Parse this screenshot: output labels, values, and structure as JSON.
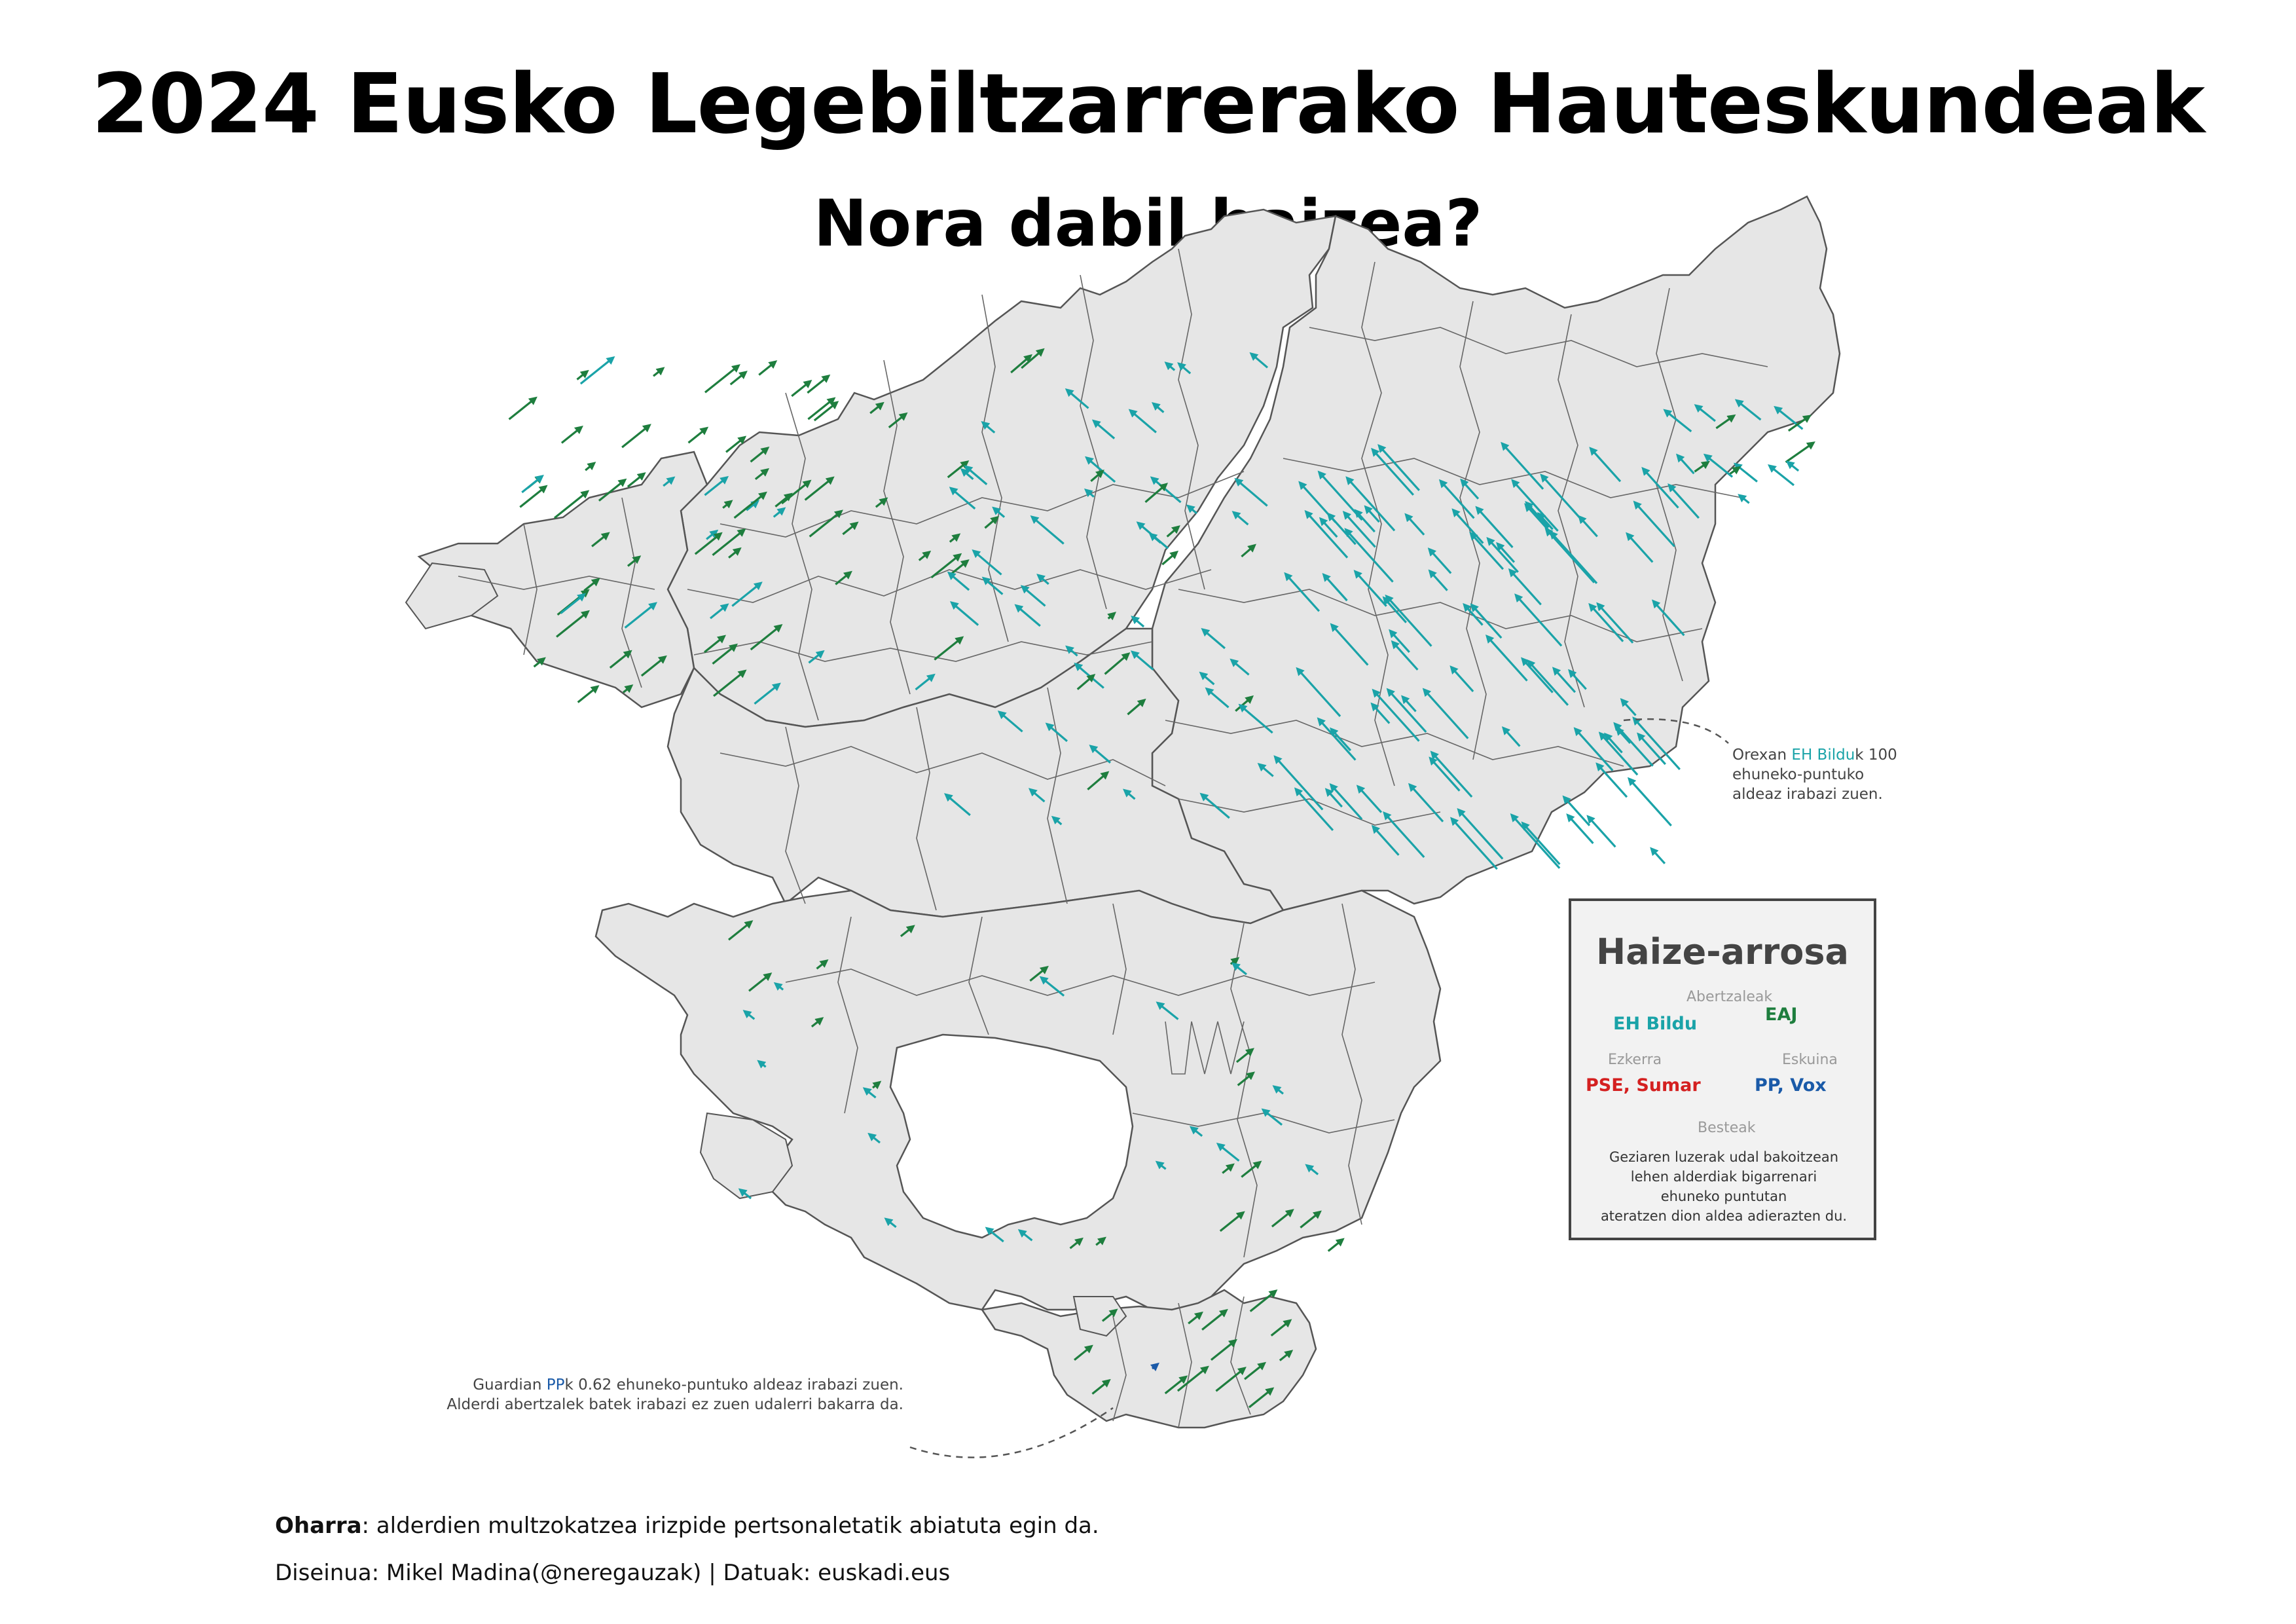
{
  "title": "2024 Eusko Legebiltzarrerako Hauteskundeak",
  "subtitle": "Nora dabil haizea?",
  "colors": {
    "EH Bildu": "#1aa3a8",
    "EAJ": "#1e7e3e",
    "PSE, Sumar": "#d42020",
    "PP, Vox": "#1a5aa8",
    "land": "#e6e6e6",
    "border": "#555555"
  },
  "annotations": {
    "orexa": {
      "pre": "Orexan ",
      "party": "EH Bildu",
      "post": "k 100",
      "line2": "ehuneko-puntuko",
      "line3": "aldeaz irabazi zuen."
    },
    "guardia": {
      "pre": "Guardian ",
      "party": "PP",
      "post": "k 0.62 ehuneko-puntuko aldeaz irabazi zuen.",
      "line2": "Alderdi abertzalek batek irabazi ez zuen udalerri bakarra da."
    }
  },
  "legend": {
    "title": "Haize-arrosa",
    "axis_top": "Abertzaleak",
    "axis_bottom": "Besteak",
    "axis_left": "Ezkerra",
    "axis_right": "Eskuina",
    "parties": {
      "nw": "EH Bildu",
      "ne": "EAJ",
      "sw": "PSE, Sumar",
      "se": "PP, Vox"
    },
    "description": [
      "Geziaren luzerak udal bakoitzean",
      "lehen alderdiak bigarrenari",
      "ehuneko puntutan",
      "ateratzen dion aldea adierazten du."
    ]
  },
  "footer": {
    "note_label": "Oharra",
    "note_text": ": alderdien multzokatzea irizpide pertsonaletatik abiatuta egin da.",
    "credits": "Diseinua: Mikel Madina(@neregauzak) | Datuak: euskadi.eus"
  }
}
